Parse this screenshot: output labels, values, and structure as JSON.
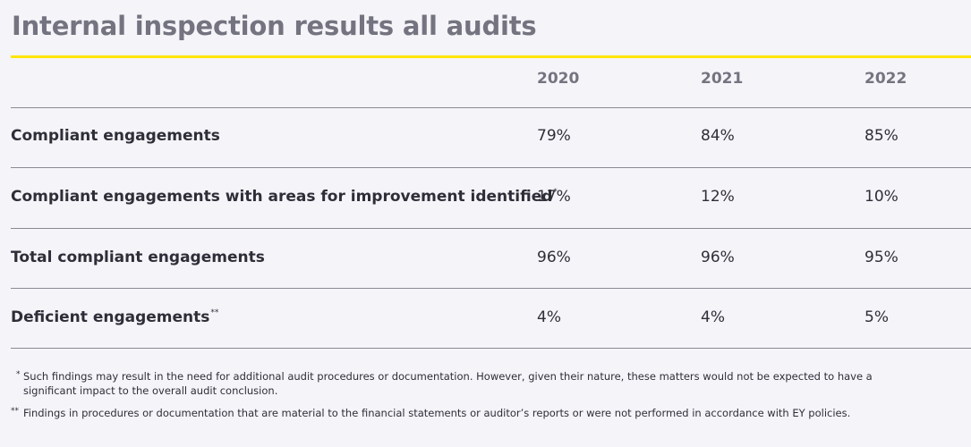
{
  "title": "Internal inspection results all audits",
  "colors": {
    "accent": "#ffe600",
    "title": "#747480",
    "text": "#2e2e38",
    "background": "#f5f4f9"
  },
  "table": {
    "years": [
      "2020",
      "2021",
      "2022"
    ],
    "rows": [
      {
        "label": "Compliant engagements",
        "mark": "",
        "values": [
          "79%",
          "84%",
          "85%"
        ]
      },
      {
        "label": "Compliant engagements with areas for improvement identified",
        "mark": "*",
        "values": [
          "17%",
          "12%",
          "10%"
        ]
      },
      {
        "label": "Total compliant engagements",
        "mark": "",
        "values": [
          "96%",
          "96%",
          "95%"
        ]
      },
      {
        "label": "Deficient engagements",
        "mark": "**",
        "values": [
          "4%",
          "4%",
          "5%"
        ]
      }
    ]
  },
  "footnotes": [
    {
      "mark": "*",
      "text": "Such findings may result in the need for additional audit procedures or documentation. However, given their nature, these matters would not be expected to have a significant impact to the overall audit conclusion."
    },
    {
      "mark": "**",
      "text": "Findings in procedures or documentation that are material to the financial statements or auditor’s reports or were not performed in accordance with EY policies."
    }
  ]
}
